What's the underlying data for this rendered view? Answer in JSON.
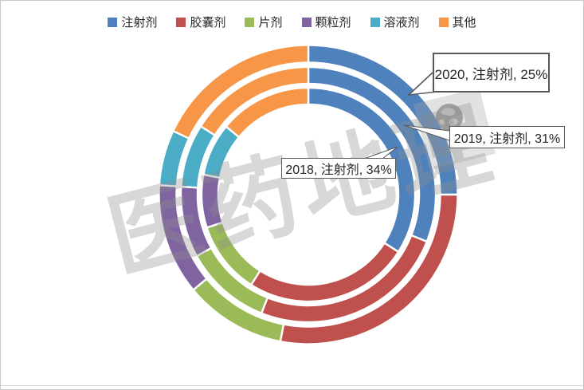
{
  "legend": {
    "items": [
      {
        "label": "注射剂",
        "color": "#4F81BD"
      },
      {
        "label": "胶囊剂",
        "color": "#C0504D"
      },
      {
        "label": "片剂",
        "color": "#9BBB59"
      },
      {
        "label": "颗粒剂",
        "color": "#8064A2"
      },
      {
        "label": "溶液剂",
        "color": "#4BACC6"
      },
      {
        "label": "其他",
        "color": "#F79646"
      }
    ]
  },
  "chart_data": {
    "type": "donut-multi-ring",
    "categories": [
      "注射剂",
      "胶囊剂",
      "片剂",
      "颗粒剂",
      "溶液剂",
      "其他"
    ],
    "colors": [
      "#4F81BD",
      "#C0504D",
      "#9BBB59",
      "#8064A2",
      "#4BACC6",
      "#F79646"
    ],
    "series": [
      {
        "name": "2018",
        "ring": "inner",
        "values": [
          34,
          25,
          11,
          8,
          8,
          14
        ]
      },
      {
        "name": "2019",
        "ring": "middle",
        "values": [
          31,
          25,
          11,
          9,
          8,
          16
        ]
      },
      {
        "name": "2020",
        "ring": "outer",
        "values": [
          25,
          28,
          11,
          12,
          6,
          18
        ]
      }
    ],
    "unit": "%",
    "start_angle_deg": 0,
    "direction": "clockwise",
    "legend_position": "top",
    "annotations": [
      "2020, 注射剂, 25%",
      "2019, 注射剂, 31%",
      "2018, 注射剂, 34%"
    ]
  },
  "callouts": [
    {
      "id": "2020",
      "label": "2020, 注射剂, 25%"
    },
    {
      "id": "2019",
      "label": "2019, 注射剂, 31%"
    },
    {
      "id": "2018",
      "label": "2018, 注射剂, 34%"
    }
  ],
  "watermark": {
    "text": "医药地理"
  }
}
